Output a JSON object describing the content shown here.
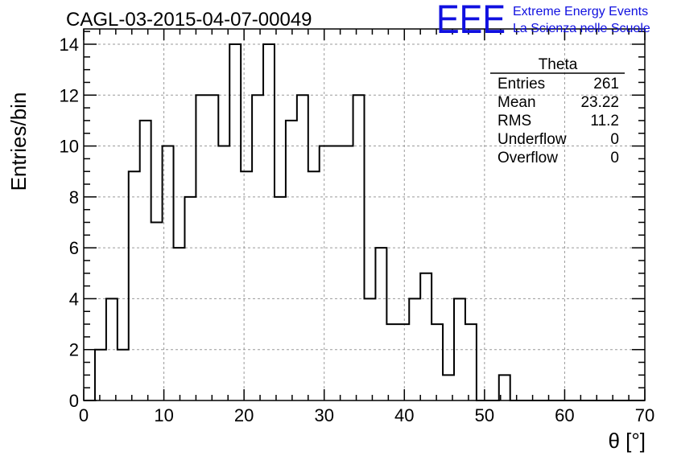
{
  "chart_data": {
    "type": "bar",
    "style": "step-histogram",
    "title": "CAGL-03-2015-04-07-00049",
    "xlabel": "θ [°]",
    "ylabel": "Entries/bin",
    "xlim": [
      0,
      70
    ],
    "ylim": [
      0,
      14.6
    ],
    "grid": true,
    "bin_width": 1.4,
    "bin_start": 0,
    "values": [
      0,
      2,
      4,
      2,
      9,
      11,
      7,
      10,
      6,
      8,
      12,
      12,
      10,
      14,
      9,
      12,
      14,
      8,
      11,
      12,
      9,
      10,
      10,
      10,
      12,
      4,
      6,
      3,
      3,
      4,
      5,
      3,
      1,
      4,
      3,
      0,
      0,
      1,
      0,
      0,
      0,
      0,
      0,
      0,
      0,
      0,
      0,
      0,
      0,
      0
    ],
    "x_ticks": [
      "0",
      "10",
      "20",
      "30",
      "40",
      "50",
      "60",
      "70"
    ],
    "y_ticks": [
      "0",
      "2",
      "4",
      "6",
      "8",
      "10",
      "12",
      "14"
    ]
  },
  "stats": {
    "title": "Theta",
    "rows": [
      {
        "label": "Entries",
        "value": "261"
      },
      {
        "label": "Mean",
        "value": "23.22"
      },
      {
        "label": "RMS",
        "value": "11.2"
      },
      {
        "label": "Underflow",
        "value": "0"
      },
      {
        "label": "Overflow",
        "value": "0"
      }
    ]
  },
  "logo": {
    "mark": "EEE",
    "line1": "Extreme Energy Events",
    "line2": "La Scienza nelle Scuole",
    "color": "#1010e0"
  }
}
